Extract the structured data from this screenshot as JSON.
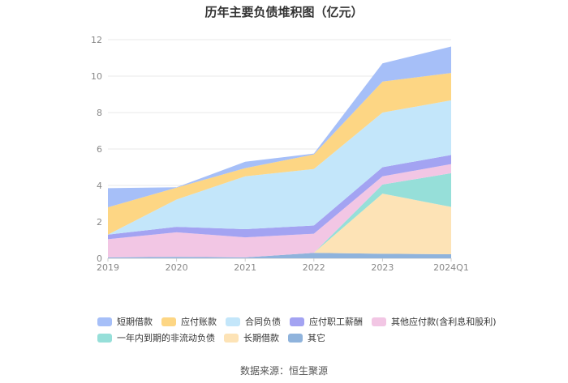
{
  "chart_data": {
    "type": "area",
    "stacked": true,
    "title": "历年主要负债堆积图（亿元）",
    "categories": [
      "2019",
      "2020",
      "2021",
      "2022",
      "2023",
      "2024Q1"
    ],
    "y_ticks": [
      "0",
      "2",
      "4",
      "6",
      "8",
      "10",
      "12"
    ],
    "ylim": [
      0,
      12
    ],
    "series": [
      {
        "name": "其它",
        "color": "#8fb3dc",
        "values": [
          0.05,
          0.08,
          0.05,
          0.3,
          0.25,
          0.22
        ]
      },
      {
        "name": "长期借款",
        "color": "#fde3b6",
        "values": [
          0,
          0,
          0,
          0,
          3.3,
          2.6
        ]
      },
      {
        "name": "一年内到期的非流动负债",
        "color": "#96dfd9",
        "values": [
          0,
          0,
          0,
          0,
          0.5,
          1.85
        ]
      },
      {
        "name": "其他应付款(含利息和股利)",
        "color": "#f2c6e4",
        "values": [
          1.0,
          1.35,
          1.1,
          1.05,
          0.45,
          0.5
        ]
      },
      {
        "name": "应付职工薪酬",
        "color": "#a3a3f2",
        "values": [
          0.25,
          0.3,
          0.45,
          0.45,
          0.5,
          0.5
        ]
      },
      {
        "name": "合同负债",
        "color": "#c3e6fa",
        "values": [
          0,
          1.5,
          2.9,
          3.1,
          3.0,
          3.0
        ]
      },
      {
        "name": "应付账款",
        "color": "#fdd684",
        "values": [
          1.5,
          0.65,
          0.45,
          0.8,
          1.7,
          1.5
        ]
      },
      {
        "name": "短期借款",
        "color": "#a6bff8",
        "values": [
          1.05,
          0.02,
          0.35,
          0.05,
          1.0,
          1.45
        ]
      }
    ],
    "legend_order": [
      "短期借款",
      "应付账款",
      "合同负债",
      "应付职工薪酬",
      "其他应付款(含利息和股利)",
      "一年内到期的非流动负债",
      "长期借款",
      "其它"
    ],
    "legend_colors": [
      "#a6bff8",
      "#fdd684",
      "#c3e6fa",
      "#a3a3f2",
      "#f2c6e4",
      "#96dfd9",
      "#fde3b6",
      "#8fb3dc"
    ],
    "grid": true,
    "legend_position": "bottom"
  },
  "source": "数据来源：恒生聚源"
}
